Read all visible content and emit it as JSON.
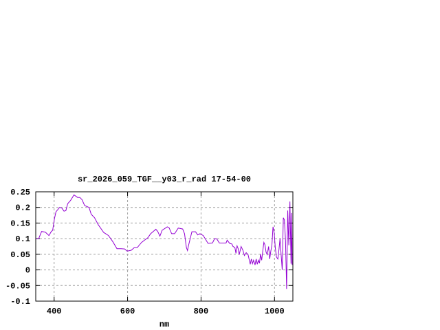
{
  "chart_data": {
    "type": "line",
    "title": "sr_2026_059_TGF__y03_r_rad 17-54-00",
    "xlabel": "nm",
    "ylabel": "",
    "xlim": [
      350,
      1050
    ],
    "ylim": [
      -0.1,
      0.25
    ],
    "grid": true,
    "x_ticks": [
      400,
      600,
      800,
      1000
    ],
    "y_ticks": [
      -0.1,
      -0.05,
      0,
      0.05,
      0.1,
      0.15,
      0.2,
      0.25
    ],
    "y_tick_labels": [
      "-0.1",
      "-0.05",
      "0",
      "0.05",
      "0.1",
      "0.15",
      "0.2",
      "0.25"
    ],
    "series": [
      {
        "color": "#9400d3",
        "x": [
          350,
          358,
          366,
          376,
          386,
          392,
          396,
          401,
          405,
          415,
          421,
          427,
          432,
          437,
          445,
          454,
          464,
          470,
          476,
          483,
          495,
          501,
          510,
          520,
          535,
          548,
          560,
          571,
          582,
          592,
          599,
          610,
          618,
          626,
          638,
          655,
          663,
          677,
          682,
          688,
          694,
          708,
          713,
          720,
          728,
          738,
          750,
          755,
          760,
          763,
          766,
          775,
          785,
          791,
          797,
          806,
          819,
          831,
          837,
          843,
          850,
          868,
          871,
          878,
          884,
          887,
          892,
          895,
          898,
          901,
          904,
          909,
          914,
          918,
          923,
          928,
          934,
          937,
          940,
          943,
          947,
          950,
          953,
          956,
          959,
          962,
          965,
          968,
          971,
          974,
          977,
          980,
          984,
          987,
          990,
          993,
          996,
          999,
          1002,
          1005,
          1009,
          1012,
          1015,
          1018,
          1021,
          1024,
          1027,
          1030,
          1033,
          1036,
          1039,
          1042,
          1045,
          1047,
          1048
        ],
        "y": [
          0.1,
          0.1,
          0.123,
          0.121,
          0.11,
          0.122,
          0.127,
          0.164,
          0.186,
          0.2,
          0.198,
          0.188,
          0.19,
          0.212,
          0.223,
          0.24,
          0.232,
          0.232,
          0.225,
          0.206,
          0.2,
          0.178,
          0.167,
          0.145,
          0.12,
          0.11,
          0.09,
          0.068,
          0.068,
          0.067,
          0.06,
          0.063,
          0.071,
          0.071,
          0.088,
          0.103,
          0.116,
          0.13,
          0.123,
          0.108,
          0.127,
          0.138,
          0.135,
          0.116,
          0.116,
          0.134,
          0.131,
          0.116,
          0.072,
          0.062,
          0.079,
          0.122,
          0.122,
          0.112,
          0.116,
          0.11,
          0.085,
          0.086,
          0.1,
          0.099,
          0.086,
          0.086,
          0.095,
          0.085,
          0.083,
          0.075,
          0.072,
          0.053,
          0.077,
          0.068,
          0.049,
          0.075,
          0.063,
          0.046,
          0.055,
          0.049,
          0.018,
          0.035,
          0.02,
          0.031,
          0.016,
          0.035,
          0.018,
          0.031,
          0.021,
          0.051,
          0.031,
          0.06,
          0.088,
          0.08,
          0.057,
          0.049,
          0.075,
          0.035,
          0.06,
          0.079,
          0.138,
          0.12,
          0.072,
          0.042,
          0.035,
          0.064,
          0.1,
          0.049,
          0.0,
          0.167,
          0.16,
          0.094,
          -0.061,
          0.19,
          0.079,
          0.219,
          0.02,
          0.182,
          0.016
        ]
      }
    ]
  }
}
